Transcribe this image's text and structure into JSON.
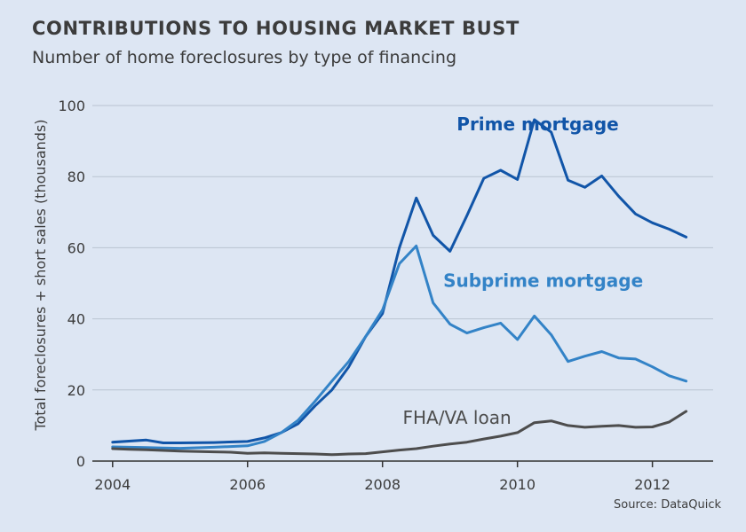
{
  "header": {
    "title": "CONTRIBUTIONS TO HOUSING MARKET BUST",
    "subtitle": "Number of home foreclosures by type of financing"
  },
  "footer": {
    "source": "Source: DataQuick"
  },
  "colors": {
    "background": "#dde6f3",
    "grid": "#b9c3d1",
    "prime": "#1155a8",
    "subprime": "#3383c7",
    "fha": "#4d4d4d",
    "text": "#3c3c3c"
  },
  "chart_data": {
    "type": "line",
    "title": "CONTRIBUTIONS TO HOUSING MARKET BUST",
    "subtitle": "Number of home foreclosures by type of financing",
    "xlabel": "",
    "ylabel": "Total foreclosures + short sales (thousands)",
    "xlim": [
      2003.7,
      2012.9
    ],
    "ylim": [
      0,
      100
    ],
    "x_ticks": [
      2004,
      2006,
      2008,
      2010,
      2012
    ],
    "y_ticks": [
      0,
      20,
      40,
      60,
      80,
      100
    ],
    "grid": true,
    "series": [
      {
        "name": "Prime mortgage",
        "color": "#1155a8",
        "label_text": "Prime mortgage",
        "label_at": [
          2009.1,
          93
        ],
        "x": [
          2004.0,
          2004.5,
          2004.75,
          2005.0,
          2005.5,
          2006.0,
          2006.25,
          2006.5,
          2006.75,
          2007.0,
          2007.25,
          2007.5,
          2007.75,
          2008.0,
          2008.25,
          2008.5,
          2008.75,
          2009.0,
          2009.25,
          2009.5,
          2009.75,
          2010.0,
          2010.25,
          2010.5,
          2010.75,
          2011.0,
          2011.25,
          2011.5,
          2011.75,
          2012.0,
          2012.25,
          2012.5
        ],
        "values": [
          5.3,
          5.9,
          5.1,
          5.1,
          5.2,
          5.5,
          6.5,
          8.0,
          10.5,
          15.5,
          20.0,
          26.5,
          35.0,
          41.5,
          60.0,
          74.0,
          63.5,
          59.0,
          69.0,
          79.5,
          81.8,
          79.2,
          96.0,
          92.5,
          79.0,
          77.0,
          80.2,
          74.5,
          69.5,
          67.0,
          65.2,
          63.0
        ]
      },
      {
        "name": "Subprime mortgage",
        "color": "#3383c7",
        "label_text": "Subprime mortgage",
        "label_at": [
          2008.9,
          49
        ],
        "x": [
          2004.0,
          2004.5,
          2004.75,
          2005.0,
          2005.5,
          2006.0,
          2006.25,
          2006.5,
          2006.75,
          2007.0,
          2007.25,
          2007.5,
          2007.75,
          2008.0,
          2008.25,
          2008.5,
          2008.75,
          2009.0,
          2009.25,
          2009.5,
          2009.75,
          2010.0,
          2010.25,
          2010.5,
          2010.75,
          2011.0,
          2011.25,
          2011.5,
          2011.75,
          2012.0,
          2012.25,
          2012.5
        ],
        "values": [
          4.0,
          3.8,
          3.7,
          3.6,
          3.9,
          4.3,
          5.5,
          8.0,
          11.5,
          16.8,
          22.5,
          28.0,
          35.0,
          42.5,
          55.5,
          60.5,
          44.5,
          38.5,
          36.0,
          37.5,
          38.8,
          34.2,
          40.8,
          35.5,
          28.0,
          29.5,
          30.8,
          29.0,
          28.7,
          26.5,
          24.0,
          22.5
        ]
      },
      {
        "name": "FHA/VA loan",
        "color": "#4d4d4d",
        "label_text": "FHA/VA loan",
        "label_at": [
          2008.3,
          10.5
        ],
        "x": [
          2004.0,
          2004.25,
          2004.5,
          2004.75,
          2005.0,
          2005.5,
          2005.75,
          2006.0,
          2006.25,
          2006.5,
          2006.75,
          2007.0,
          2007.25,
          2007.5,
          2007.75,
          2008.0,
          2008.25,
          2008.5,
          2008.75,
          2009.0,
          2009.25,
          2009.5,
          2009.75,
          2010.0,
          2010.25,
          2010.5,
          2010.75,
          2011.0,
          2011.25,
          2011.5,
          2011.75,
          2012.0,
          2012.25,
          2012.5
        ],
        "values": [
          3.5,
          3.3,
          3.2,
          3.0,
          2.8,
          2.6,
          2.5,
          2.2,
          2.3,
          2.2,
          2.1,
          2.0,
          1.8,
          2.0,
          2.1,
          2.6,
          3.1,
          3.5,
          4.2,
          4.8,
          5.3,
          6.2,
          7.0,
          8.0,
          10.8,
          11.3,
          10.0,
          9.5,
          9.8,
          10.0,
          9.5,
          9.6,
          11.0,
          14.0
        ]
      }
    ]
  }
}
